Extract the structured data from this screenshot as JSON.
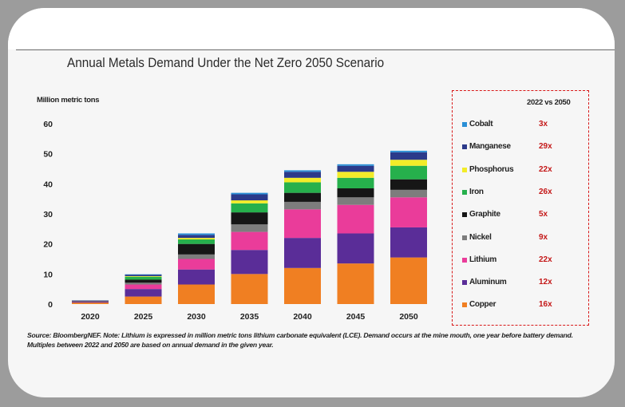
{
  "chart_data": {
    "type": "bar",
    "stacked": true,
    "title": "Annual Metals Demand Under the Net Zero 2050 Scenario",
    "ylabel": "Million metric tons",
    "xlabel": "",
    "ylim": [
      0,
      60
    ],
    "yticks": [
      0,
      10,
      20,
      30,
      40,
      50,
      60
    ],
    "grid": false,
    "categories": [
      "2020",
      "2025",
      "2030",
      "2035",
      "2040",
      "2045",
      "2050"
    ],
    "legend_title": "2022 vs 2050",
    "legend_position": "right",
    "series": [
      {
        "name": "Copper",
        "color": "#f07f22",
        "multiple": "16x",
        "values": [
          0.5,
          2.5,
          6.5,
          10.0,
          12.0,
          13.5,
          15.5
        ]
      },
      {
        "name": "Aluminum",
        "color": "#5a2d98",
        "multiple": "12x",
        "values": [
          0.3,
          2.5,
          5.0,
          8.0,
          10.0,
          10.0,
          10.0
        ]
      },
      {
        "name": "Lithium",
        "color": "#ea3c9a",
        "multiple": "22x",
        "values": [
          0.1,
          1.5,
          3.5,
          6.0,
          9.5,
          9.5,
          10.0
        ]
      },
      {
        "name": "Nickel",
        "color": "#7d7d7d",
        "multiple": "9x",
        "values": [
          0.1,
          0.6,
          1.5,
          2.5,
          2.5,
          2.5,
          2.5
        ]
      },
      {
        "name": "Graphite",
        "color": "#161616",
        "multiple": "5x",
        "values": [
          0.1,
          1.0,
          3.5,
          4.0,
          3.0,
          3.0,
          3.5
        ]
      },
      {
        "name": "Iron",
        "color": "#26b04c",
        "multiple": "26x",
        "values": [
          0.05,
          1.0,
          1.5,
          3.0,
          3.5,
          3.5,
          4.5
        ]
      },
      {
        "name": "Phosphorus",
        "color": "#f2ec29",
        "multiple": "22x",
        "values": [
          0.0,
          0.2,
          0.5,
          1.0,
          1.5,
          2.0,
          2.0
        ]
      },
      {
        "name": "Manganese",
        "color": "#2b3a8a",
        "multiple": "29x",
        "values": [
          0.05,
          0.5,
          1.0,
          2.0,
          2.0,
          2.0,
          2.5
        ]
      },
      {
        "name": "Cobalt",
        "color": "#2a8fd6",
        "multiple": "3x",
        "values": [
          0.0,
          0.1,
          0.5,
          0.5,
          0.5,
          0.5,
          0.5
        ]
      }
    ]
  },
  "legend_order": [
    "Cobalt",
    "Manganese",
    "Phosphorus",
    "Iron",
    "Graphite",
    "Nickel",
    "Lithium",
    "Aluminum",
    "Copper"
  ],
  "source_note": "Source: BloombergNEF. Note: Lithium is expressed in million metric tons lithium carbonate equivalent (LCE). Demand occurs at the mine mouth, one year before battery demand. Multiples between 2022 and 2050 are based on annual demand in the given year."
}
